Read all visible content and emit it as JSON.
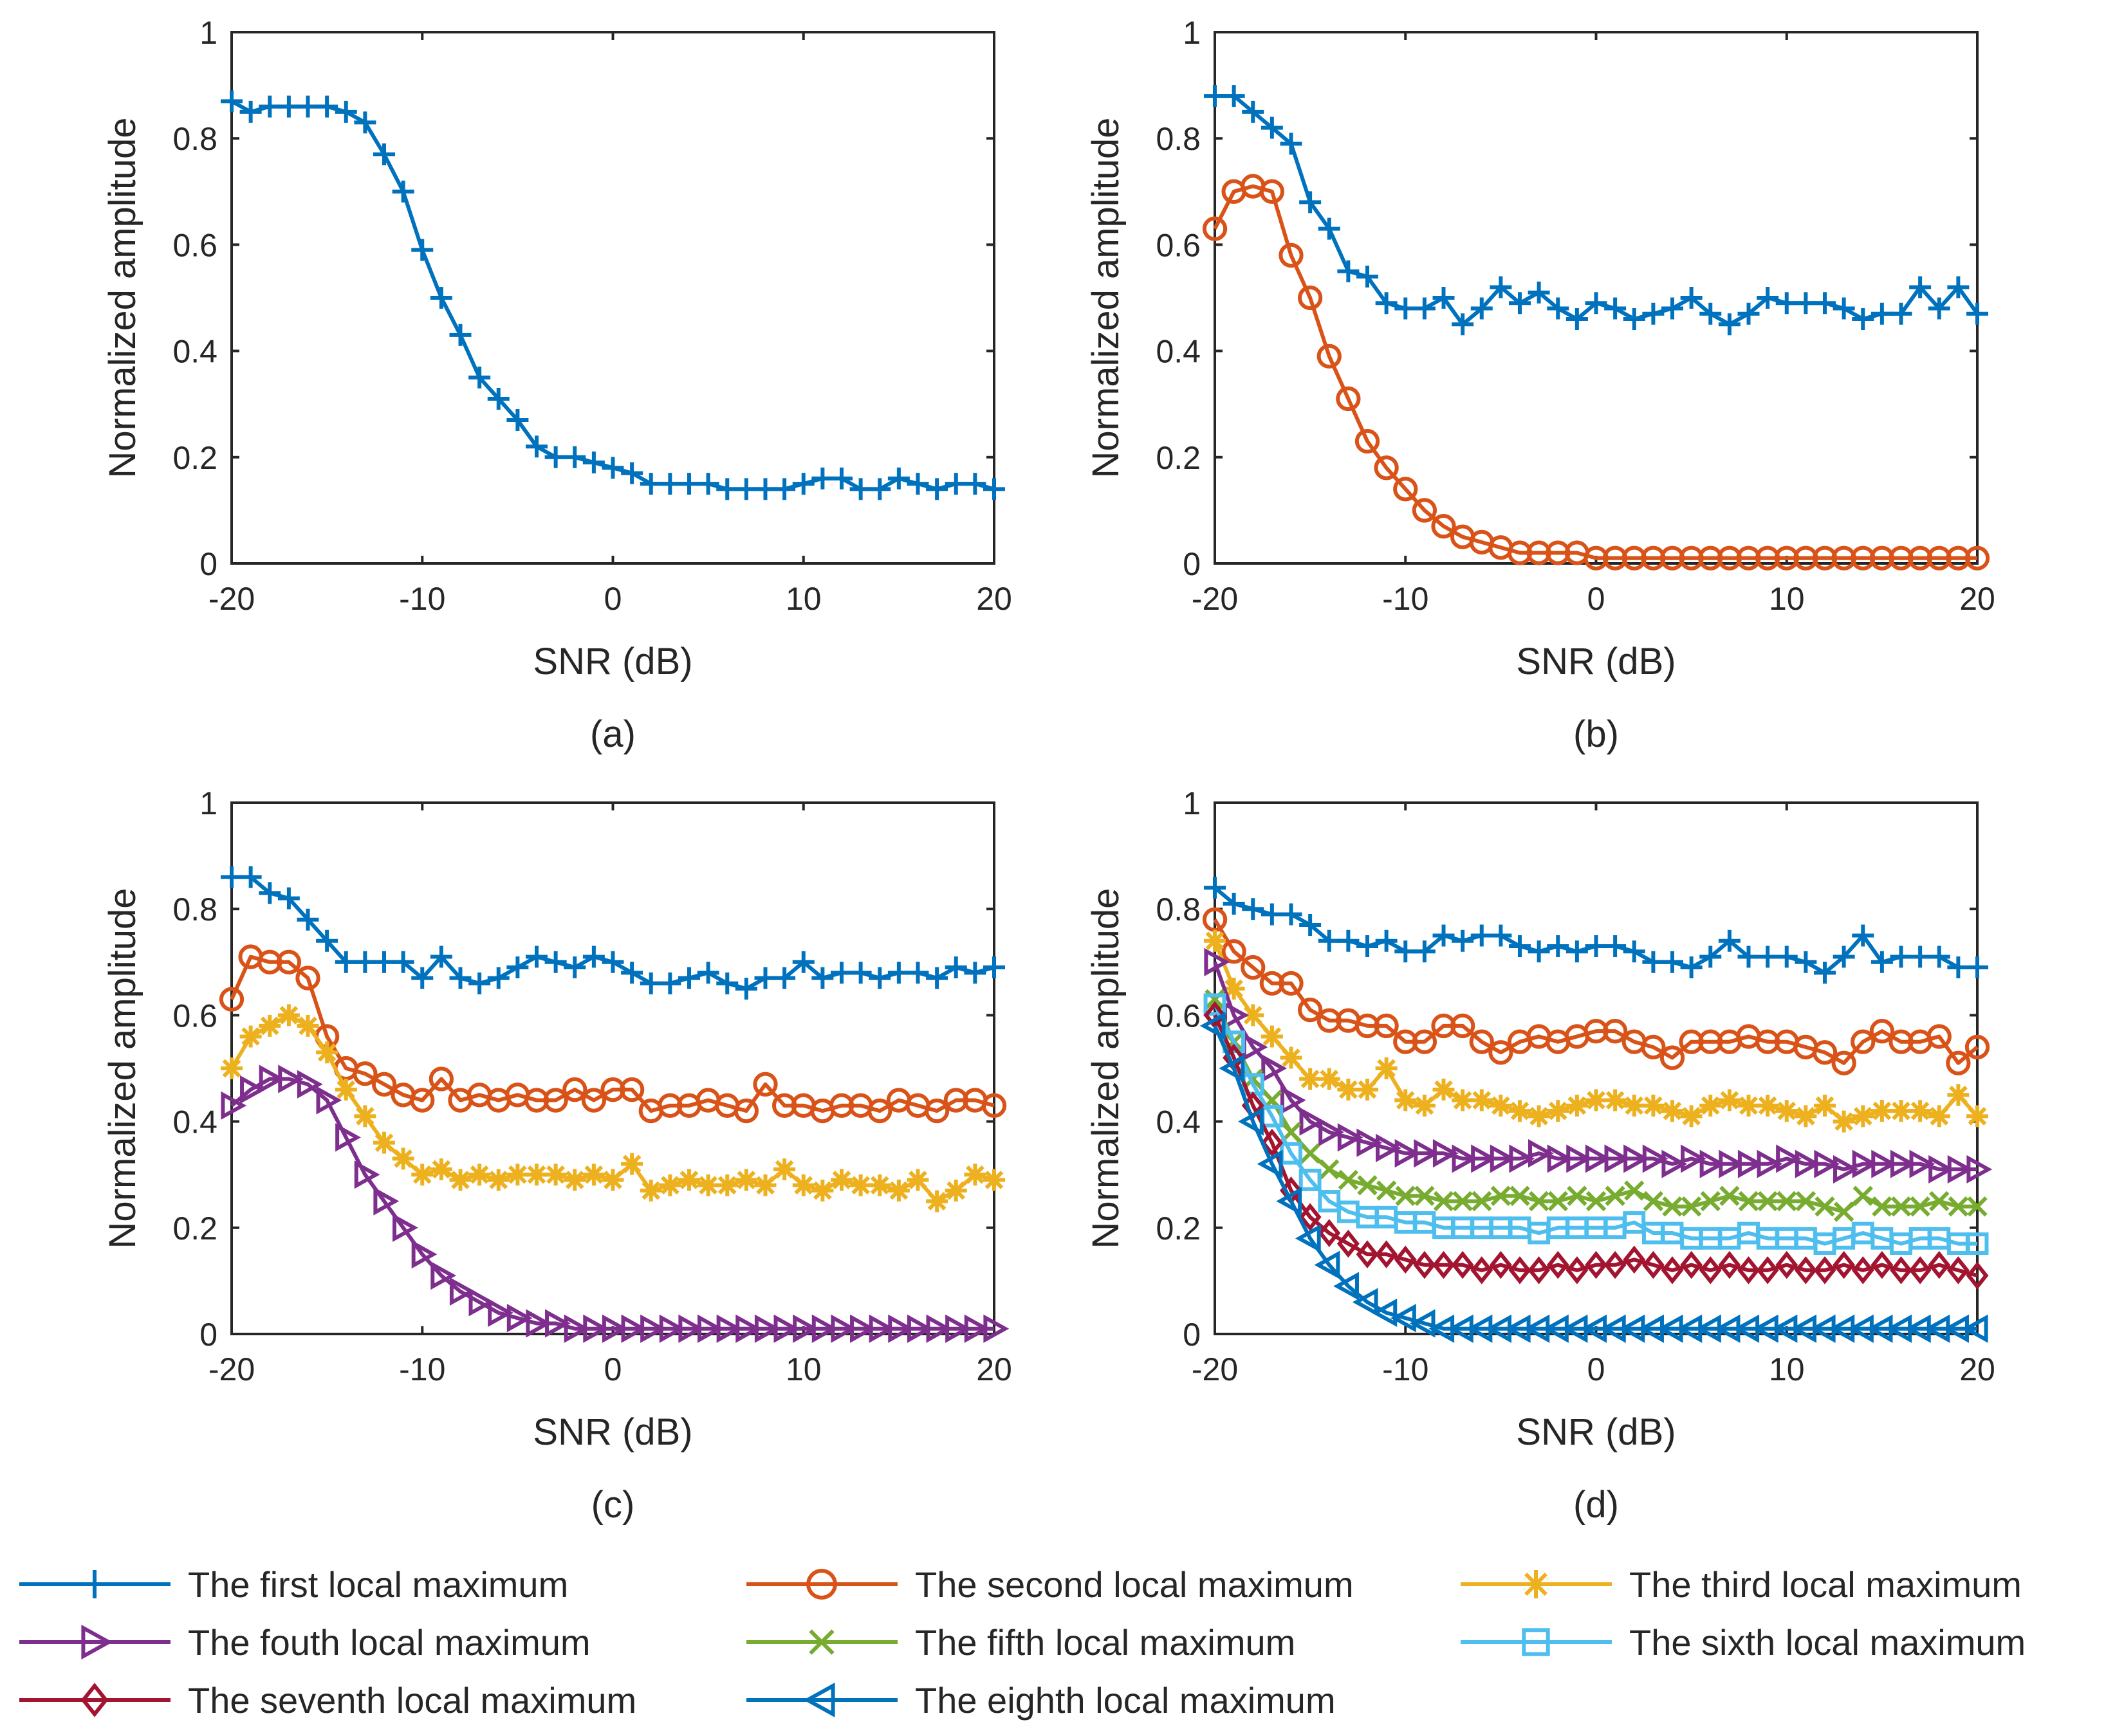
{
  "colors": {
    "first": "#0072BD",
    "second": "#D95319",
    "third": "#EDB120",
    "fourth": "#7E2F8E",
    "fifth": "#77AC30",
    "sixth": "#4DBEEE",
    "seventh": "#A2142F",
    "eighth": "#0072BD",
    "axis": "#262626"
  },
  "legend": [
    {
      "key": "first",
      "label": "The first local maximum",
      "marker": "plus"
    },
    {
      "key": "second",
      "label": "The second local maximum",
      "marker": "circle"
    },
    {
      "key": "third",
      "label": "The third local maximum",
      "marker": "asterisk"
    },
    {
      "key": "fourth",
      "label": "The fouth local maximum",
      "marker": "triangle-right"
    },
    {
      "key": "fifth",
      "label": "The fifth local maximum",
      "marker": "x"
    },
    {
      "key": "sixth",
      "label": "The sixth local maximum",
      "marker": "square"
    },
    {
      "key": "seventh",
      "label": "The seventh local maximum",
      "marker": "diamond"
    },
    {
      "key": "eighth",
      "label": "The eighth local maximum",
      "marker": "triangle-left"
    }
  ],
  "chart_data": [
    {
      "type": "line",
      "caption": "(a)",
      "xlabel": "SNR (dB)",
      "ylabel": "Normalized amplitude",
      "xlim": [
        -20,
        20
      ],
      "ylim": [
        0,
        1
      ],
      "xticks": [
        "-20",
        "-10",
        "0",
        "10",
        "20"
      ],
      "yticks": [
        "0",
        "0.2",
        "0.4",
        "0.6",
        "0.8",
        "1"
      ],
      "x_start": -20,
      "x_step": 1,
      "series": [
        {
          "key": "first",
          "name": "The first local maximum",
          "values": [
            0.87,
            0.85,
            0.86,
            0.86,
            0.86,
            0.86,
            0.85,
            0.83,
            0.77,
            0.7,
            0.59,
            0.5,
            0.43,
            0.35,
            0.31,
            0.27,
            0.22,
            0.2,
            0.2,
            0.19,
            0.18,
            0.17,
            0.15,
            0.15,
            0.15,
            0.15,
            0.14,
            0.14,
            0.14,
            0.14,
            0.15,
            0.16,
            0.16,
            0.14,
            0.14,
            0.16,
            0.15,
            0.14,
            0.15,
            0.15,
            0.14
          ]
        }
      ]
    },
    {
      "type": "line",
      "caption": "(b)",
      "xlabel": "SNR (dB)",
      "ylabel": "Normalized amplitude",
      "xlim": [
        -20,
        20
      ],
      "ylim": [
        0,
        1
      ],
      "xticks": [
        "-20",
        "-10",
        "0",
        "10",
        "20"
      ],
      "yticks": [
        "0",
        "0.2",
        "0.4",
        "0.6",
        "0.8",
        "1"
      ],
      "x_start": -20,
      "x_step": 1,
      "series": [
        {
          "key": "first",
          "name": "The first local maximum",
          "values": [
            0.88,
            0.88,
            0.85,
            0.82,
            0.79,
            0.68,
            0.63,
            0.55,
            0.54,
            0.49,
            0.48,
            0.48,
            0.5,
            0.45,
            0.48,
            0.52,
            0.49,
            0.51,
            0.48,
            0.46,
            0.49,
            0.48,
            0.46,
            0.47,
            0.48,
            0.5,
            0.47,
            0.45,
            0.47,
            0.5,
            0.49,
            0.49,
            0.49,
            0.48,
            0.46,
            0.47,
            0.47,
            0.52,
            0.48,
            0.52,
            0.47
          ]
        },
        {
          "key": "second",
          "name": "The second local maximum",
          "values": [
            0.63,
            0.7,
            0.71,
            0.7,
            0.58,
            0.5,
            0.39,
            0.31,
            0.23,
            0.18,
            0.14,
            0.1,
            0.07,
            0.05,
            0.04,
            0.03,
            0.02,
            0.02,
            0.02,
            0.02,
            0.01,
            0.01,
            0.01,
            0.01,
            0.01,
            0.01,
            0.01,
            0.01,
            0.01,
            0.01,
            0.01,
            0.01,
            0.01,
            0.01,
            0.01,
            0.01,
            0.01,
            0.01,
            0.01,
            0.01,
            0.01
          ]
        }
      ]
    },
    {
      "type": "line",
      "caption": "(c)",
      "xlabel": "SNR (dB)",
      "ylabel": "Normalized amplitude",
      "xlim": [
        -20,
        20
      ],
      "ylim": [
        0,
        1
      ],
      "xticks": [
        "-20",
        "-10",
        "0",
        "10",
        "20"
      ],
      "yticks": [
        "0",
        "0.2",
        "0.4",
        "0.6",
        "0.8",
        "1"
      ],
      "x_start": -20,
      "x_step": 1,
      "series": [
        {
          "key": "first",
          "name": "The first local maximum",
          "values": [
            0.86,
            0.86,
            0.83,
            0.82,
            0.78,
            0.74,
            0.7,
            0.7,
            0.7,
            0.7,
            0.67,
            0.71,
            0.67,
            0.66,
            0.67,
            0.69,
            0.71,
            0.7,
            0.69,
            0.71,
            0.7,
            0.68,
            0.66,
            0.66,
            0.67,
            0.68,
            0.66,
            0.65,
            0.67,
            0.67,
            0.7,
            0.67,
            0.68,
            0.68,
            0.67,
            0.68,
            0.68,
            0.67,
            0.69,
            0.68,
            0.69
          ]
        },
        {
          "key": "second",
          "name": "The second local maximum",
          "values": [
            0.63,
            0.71,
            0.7,
            0.7,
            0.67,
            0.56,
            0.5,
            0.49,
            0.47,
            0.45,
            0.44,
            0.48,
            0.44,
            0.45,
            0.44,
            0.45,
            0.44,
            0.44,
            0.46,
            0.44,
            0.46,
            0.46,
            0.42,
            0.43,
            0.43,
            0.44,
            0.43,
            0.42,
            0.47,
            0.43,
            0.43,
            0.42,
            0.43,
            0.43,
            0.42,
            0.44,
            0.43,
            0.42,
            0.44,
            0.44,
            0.43
          ]
        },
        {
          "key": "third",
          "name": "The third local maximum",
          "values": [
            0.5,
            0.56,
            0.58,
            0.6,
            0.58,
            0.53,
            0.46,
            0.41,
            0.36,
            0.33,
            0.3,
            0.31,
            0.29,
            0.3,
            0.29,
            0.3,
            0.3,
            0.3,
            0.29,
            0.3,
            0.29,
            0.32,
            0.27,
            0.28,
            0.29,
            0.28,
            0.28,
            0.29,
            0.28,
            0.31,
            0.28,
            0.27,
            0.29,
            0.28,
            0.28,
            0.27,
            0.29,
            0.25,
            0.27,
            0.3,
            0.29
          ]
        },
        {
          "key": "fourth",
          "name": "The fouth local maximum",
          "values": [
            0.43,
            0.46,
            0.48,
            0.48,
            0.47,
            0.44,
            0.37,
            0.3,
            0.25,
            0.2,
            0.15,
            0.11,
            0.08,
            0.06,
            0.04,
            0.03,
            0.02,
            0.02,
            0.01,
            0.01,
            0.01,
            0.01,
            0.01,
            0.01,
            0.01,
            0.01,
            0.01,
            0.01,
            0.01,
            0.01,
            0.01,
            0.01,
            0.01,
            0.01,
            0.01,
            0.01,
            0.01,
            0.01,
            0.01,
            0.01,
            0.01
          ]
        }
      ]
    },
    {
      "type": "line",
      "caption": "(d)",
      "xlabel": "SNR (dB)",
      "ylabel": "Normalized amplitude",
      "xlim": [
        -20,
        20
      ],
      "ylim": [
        0,
        1
      ],
      "xticks": [
        "-20",
        "-10",
        "0",
        "10",
        "20"
      ],
      "yticks": [
        "0",
        "0.2",
        "0.4",
        "0.6",
        "0.8",
        "1"
      ],
      "x_start": -20,
      "x_step": 1,
      "series": [
        {
          "key": "first",
          "name": "The first local maximum",
          "values": [
            0.84,
            0.81,
            0.8,
            0.79,
            0.79,
            0.77,
            0.74,
            0.74,
            0.73,
            0.74,
            0.72,
            0.72,
            0.75,
            0.74,
            0.75,
            0.75,
            0.73,
            0.72,
            0.73,
            0.72,
            0.73,
            0.73,
            0.72,
            0.7,
            0.7,
            0.69,
            0.71,
            0.74,
            0.71,
            0.71,
            0.71,
            0.7,
            0.68,
            0.71,
            0.75,
            0.7,
            0.71,
            0.71,
            0.71,
            0.69,
            0.69
          ]
        },
        {
          "key": "second",
          "name": "The second local maximum",
          "values": [
            0.78,
            0.72,
            0.69,
            0.66,
            0.66,
            0.61,
            0.59,
            0.59,
            0.58,
            0.58,
            0.55,
            0.55,
            0.58,
            0.58,
            0.55,
            0.53,
            0.55,
            0.56,
            0.55,
            0.56,
            0.57,
            0.57,
            0.55,
            0.54,
            0.52,
            0.55,
            0.55,
            0.55,
            0.56,
            0.55,
            0.55,
            0.54,
            0.53,
            0.51,
            0.55,
            0.57,
            0.55,
            0.55,
            0.56,
            0.51,
            0.54
          ]
        },
        {
          "key": "third",
          "name": "The third local maximum",
          "values": [
            0.74,
            0.65,
            0.6,
            0.56,
            0.52,
            0.48,
            0.48,
            0.46,
            0.46,
            0.5,
            0.44,
            0.43,
            0.46,
            0.44,
            0.44,
            0.43,
            0.42,
            0.41,
            0.42,
            0.43,
            0.44,
            0.44,
            0.43,
            0.43,
            0.42,
            0.41,
            0.43,
            0.44,
            0.43,
            0.43,
            0.42,
            0.41,
            0.43,
            0.4,
            0.41,
            0.42,
            0.42,
            0.42,
            0.41,
            0.45,
            0.41
          ]
        },
        {
          "key": "fourth",
          "name": "The fouth local maximum",
          "values": [
            0.7,
            0.6,
            0.54,
            0.5,
            0.44,
            0.4,
            0.38,
            0.37,
            0.36,
            0.35,
            0.34,
            0.34,
            0.34,
            0.33,
            0.33,
            0.33,
            0.33,
            0.34,
            0.33,
            0.33,
            0.33,
            0.33,
            0.33,
            0.33,
            0.32,
            0.33,
            0.32,
            0.32,
            0.32,
            0.32,
            0.33,
            0.32,
            0.32,
            0.31,
            0.32,
            0.32,
            0.32,
            0.32,
            0.31,
            0.31,
            0.31
          ]
        },
        {
          "key": "fifth",
          "name": "The fifth local maximum",
          "values": [
            0.63,
            0.55,
            0.48,
            0.44,
            0.38,
            0.34,
            0.31,
            0.29,
            0.28,
            0.27,
            0.26,
            0.26,
            0.25,
            0.25,
            0.25,
            0.26,
            0.26,
            0.25,
            0.25,
            0.26,
            0.25,
            0.26,
            0.27,
            0.25,
            0.24,
            0.24,
            0.25,
            0.26,
            0.25,
            0.25,
            0.25,
            0.25,
            0.24,
            0.23,
            0.26,
            0.24,
            0.24,
            0.24,
            0.25,
            0.24,
            0.24
          ]
        },
        {
          "key": "sixth",
          "name": "The sixth local maximum",
          "values": [
            0.62,
            0.55,
            0.47,
            0.41,
            0.34,
            0.29,
            0.25,
            0.23,
            0.22,
            0.22,
            0.21,
            0.21,
            0.2,
            0.2,
            0.2,
            0.2,
            0.2,
            0.19,
            0.2,
            0.2,
            0.2,
            0.2,
            0.21,
            0.19,
            0.19,
            0.18,
            0.18,
            0.18,
            0.19,
            0.18,
            0.18,
            0.18,
            0.17,
            0.18,
            0.19,
            0.18,
            0.17,
            0.18,
            0.18,
            0.17,
            0.17
          ]
        },
        {
          "key": "seventh",
          "name": "The seventh local maximum",
          "values": [
            0.6,
            0.52,
            0.43,
            0.36,
            0.27,
            0.22,
            0.19,
            0.17,
            0.15,
            0.15,
            0.14,
            0.13,
            0.13,
            0.13,
            0.12,
            0.13,
            0.12,
            0.12,
            0.13,
            0.12,
            0.13,
            0.13,
            0.14,
            0.13,
            0.12,
            0.13,
            0.12,
            0.13,
            0.12,
            0.12,
            0.13,
            0.12,
            0.12,
            0.13,
            0.12,
            0.13,
            0.12,
            0.12,
            0.13,
            0.12,
            0.11
          ]
        },
        {
          "key": "eighth",
          "name": "The eighth local maximum",
          "values": [
            0.58,
            0.5,
            0.4,
            0.32,
            0.25,
            0.18,
            0.13,
            0.09,
            0.06,
            0.04,
            0.03,
            0.02,
            0.01,
            0.01,
            0.01,
            0.01,
            0.01,
            0.01,
            0.01,
            0.01,
            0.01,
            0.01,
            0.01,
            0.01,
            0.01,
            0.01,
            0.01,
            0.01,
            0.01,
            0.01,
            0.01,
            0.01,
            0.01,
            0.01,
            0.01,
            0.01,
            0.01,
            0.01,
            0.01,
            0.01,
            0.01
          ]
        }
      ]
    }
  ]
}
